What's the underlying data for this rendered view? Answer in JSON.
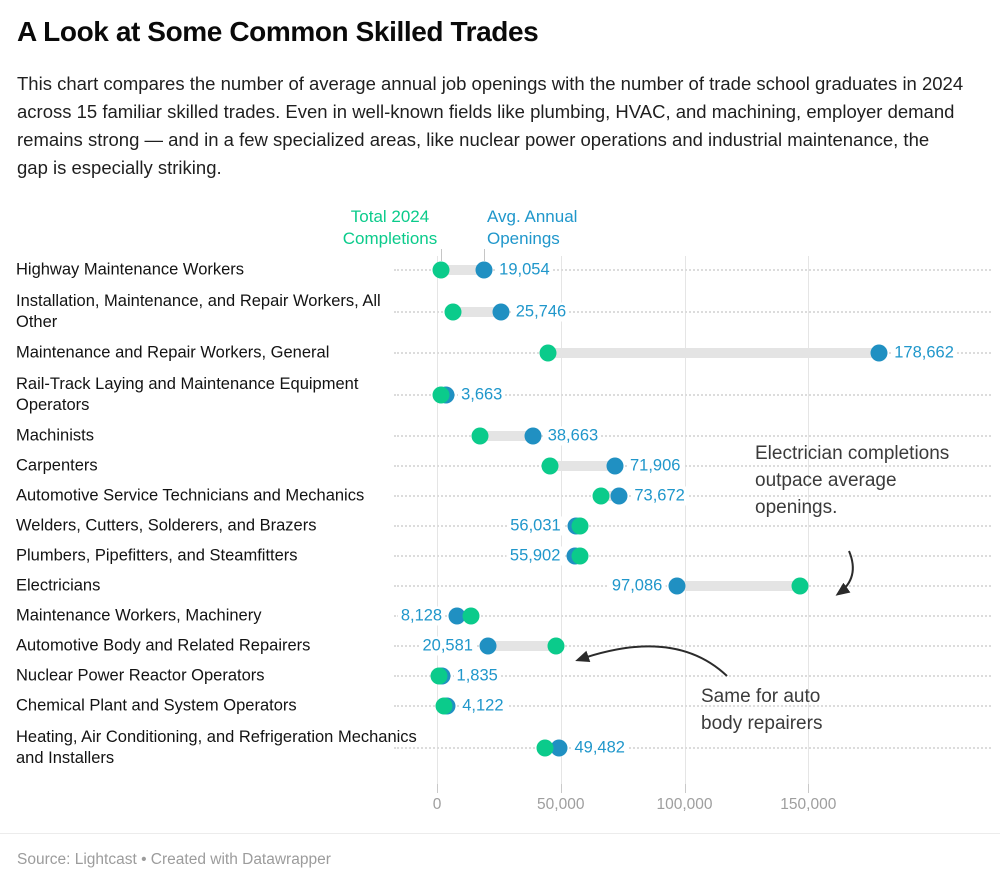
{
  "header": {
    "title": "A Look at Some Common Skilled Trades",
    "description": "This chart compares the number of average annual job openings with the number of trade school graduates in 2024 across 15 familiar skilled trades. Even in well-known fields like plumbing, HVAC, and machining, employer demand remains strong — and in a few specialized areas, like nuclear power operations and industrial maintenance, the gap is especially striking."
  },
  "legend": {
    "completions_label": "Total 2024 Completions",
    "openings_label": "Avg. Annual Openings"
  },
  "chart_data": {
    "type": "dumbbell",
    "title": "A Look at Some Common Skilled Trades",
    "x_axis": {
      "tick_values": [
        0,
        50000,
        100000,
        150000
      ],
      "tick_labels": [
        "0",
        "50,000",
        "100,000",
        "150,000"
      ],
      "range": [
        0,
        185000
      ],
      "grid": true
    },
    "series": [
      {
        "name": "Total 2024 Completions",
        "color": "#0bcb8b"
      },
      {
        "name": "Avg. Annual Openings",
        "color": "#2090c2"
      }
    ],
    "value_label_color": "#2097cb",
    "rows": [
      {
        "label": "Highway Maintenance Workers",
        "completions": 1600,
        "openings": 19054,
        "label_side": "right"
      },
      {
        "label": "Installation, Maintenance, and Repair Workers, All Other",
        "completions": 6500,
        "openings": 25746,
        "label_side": "right"
      },
      {
        "label": "Maintenance and Repair Workers, General",
        "completions": 45000,
        "openings": 178662,
        "label_side": "right"
      },
      {
        "label": "Rail-Track Laying and Maintenance Equipment Operators",
        "completions": 1500,
        "openings": 3663,
        "label_side": "right"
      },
      {
        "label": "Machinists",
        "completions": 17300,
        "openings": 38663,
        "label_side": "right"
      },
      {
        "label": "Carpenters",
        "completions": 45600,
        "openings": 71906,
        "label_side": "right"
      },
      {
        "label": "Automotive Service Technicians and Mechanics",
        "completions": 66400,
        "openings": 73672,
        "label_side": "right"
      },
      {
        "label": "Welders, Cutters, Solderers, and Brazers",
        "completions": 57700,
        "openings": 56031,
        "label_side": "left"
      },
      {
        "label": "Plumbers, Pipefitters, and Steamfitters",
        "completions": 57900,
        "openings": 55902,
        "label_side": "left"
      },
      {
        "label": "Electricians",
        "completions": 146800,
        "openings": 97086,
        "label_side": "left"
      },
      {
        "label": "Maintenance Workers, Machinery",
        "completions": 13700,
        "openings": 8128,
        "label_side": "left"
      },
      {
        "label": "Automotive Body and Related Repairers",
        "completions": 48000,
        "openings": 20581,
        "label_side": "left"
      },
      {
        "label": "Nuclear Power Reactor Operators",
        "completions": 1000,
        "openings": 1835,
        "label_side": "right"
      },
      {
        "label": "Chemical Plant and System Operators",
        "completions": 3000,
        "openings": 4122,
        "label_side": "right"
      },
      {
        "label": "Heating, Air Conditioning, and Refrigeration Mechanics and Installers",
        "completions": 43500,
        "openings": 49482,
        "label_side": "right"
      }
    ]
  },
  "annotations": [
    {
      "text": "Electrician completions outpace average openings."
    },
    {
      "text": "Same for auto body repairers"
    }
  ],
  "footer": {
    "source": "Source: Lightcast • Created with Datawrapper"
  }
}
